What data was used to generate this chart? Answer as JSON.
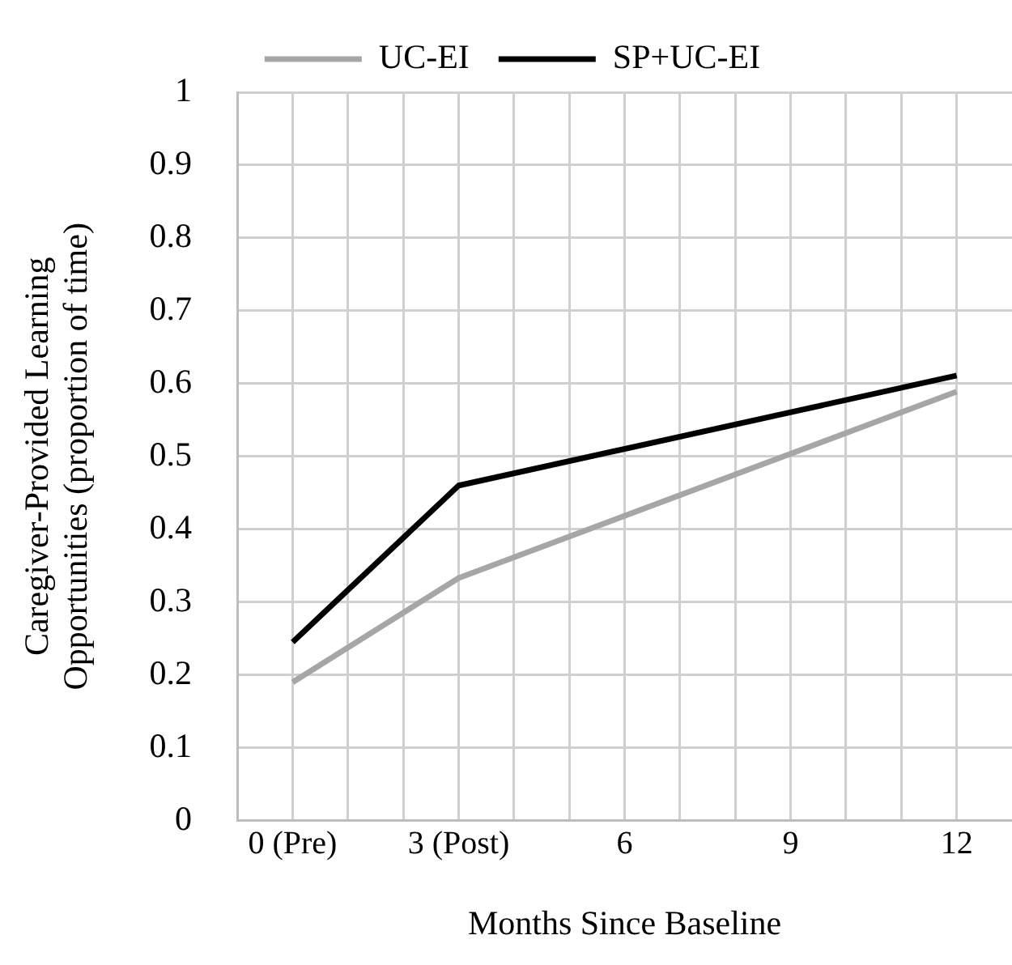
{
  "chart_data": {
    "type": "line",
    "xlabel": "Months Since Baseline",
    "ylabel": "Caregiver-Provided Learning\nOpportunities (proportion of time)",
    "x": [
      0,
      3,
      12
    ],
    "series": [
      {
        "name": "UC-EI",
        "color": "#a6a6a6",
        "values": [
          0.19,
          0.333,
          0.589
        ]
      },
      {
        "name": "SP+UC-EI",
        "color": "#000000",
        "values": [
          0.245,
          0.46,
          0.611
        ]
      }
    ],
    "xlim": [
      -1,
      13
    ],
    "xticks": [
      {
        "value": 0,
        "label": "0 (Pre)"
      },
      {
        "value": 1,
        "label": null
      },
      {
        "value": 2,
        "label": null
      },
      {
        "value": 3,
        "label": "3 (Post)"
      },
      {
        "value": 4,
        "label": null
      },
      {
        "value": 5,
        "label": null
      },
      6,
      {
        "value": 7,
        "label": null
      },
      {
        "value": 8,
        "label": null
      },
      9,
      {
        "value": 10,
        "label": null
      },
      {
        "value": 11,
        "label": null
      },
      12
    ],
    "ylim": [
      0,
      1
    ],
    "yticks": [
      0,
      0.1,
      0.2,
      0.3,
      0.4,
      0.5,
      0.6,
      0.7,
      0.8,
      0.9,
      1
    ],
    "grid": true,
    "legend": "top",
    "marker": "none",
    "line_style": "solid"
  }
}
